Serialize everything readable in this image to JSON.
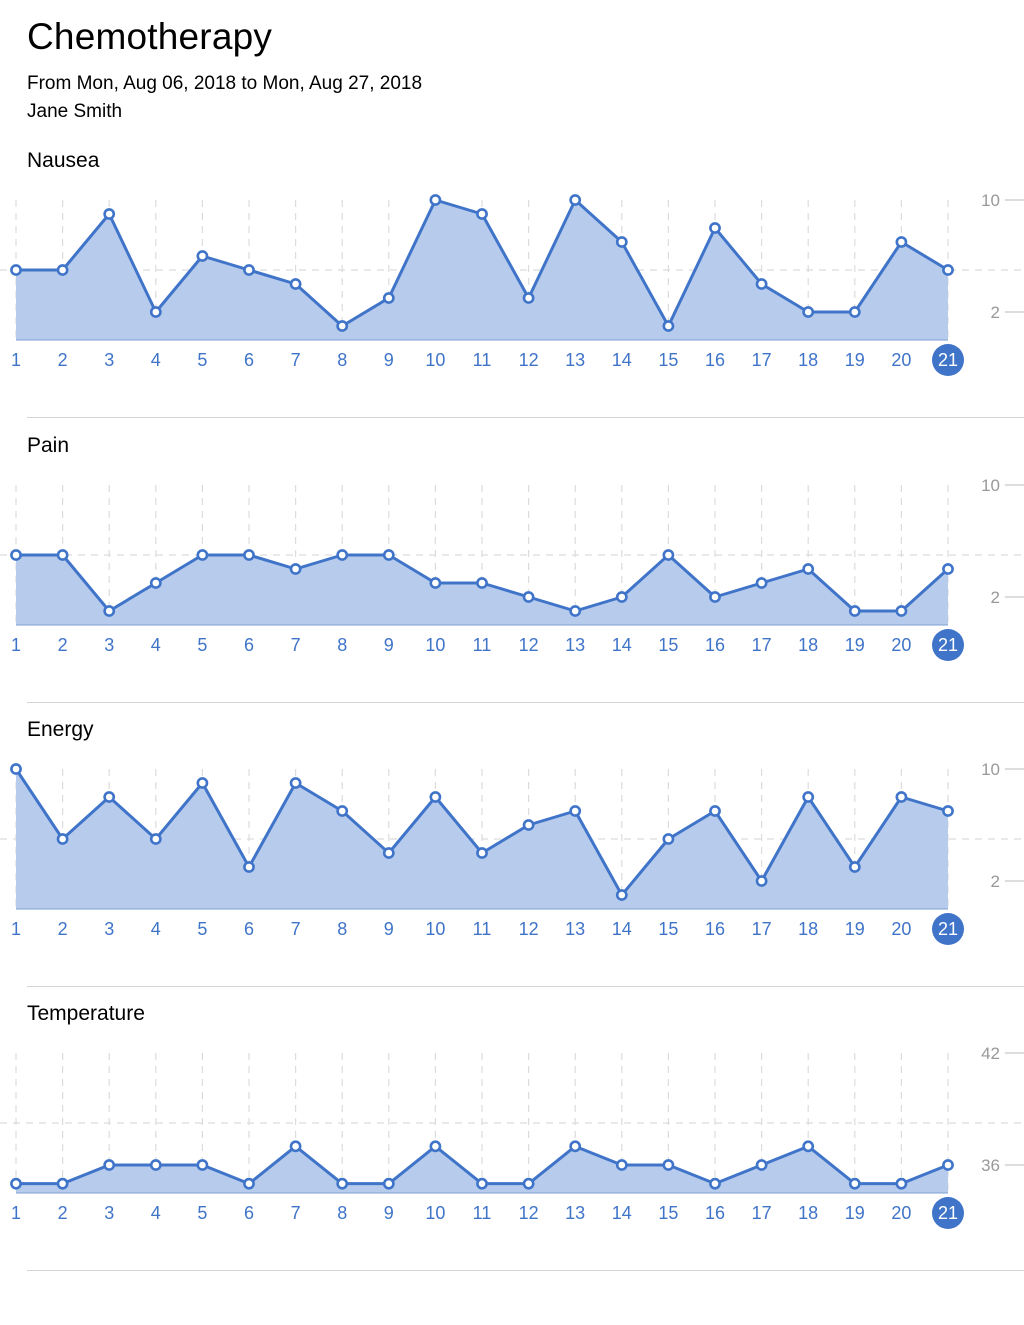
{
  "header": {
    "title": "Chemotherapy",
    "date_range": "From Mon, Aug 06, 2018 to Mon, Aug 27, 2018",
    "patient": "Jane Smith"
  },
  "colors": {
    "line": "#3f74c9",
    "fill": "#b7cbec",
    "highlight": "#3f74c9",
    "tick": "#3f74c9",
    "axis": "#999999"
  },
  "chart_data": [
    {
      "type": "area",
      "title": "Nausea",
      "x": [
        1,
        2,
        3,
        4,
        5,
        6,
        7,
        8,
        9,
        10,
        11,
        12,
        13,
        14,
        15,
        16,
        17,
        18,
        19,
        20,
        21
      ],
      "values": [
        5,
        5,
        9,
        2,
        6,
        5,
        4,
        1,
        3,
        10,
        9,
        3,
        10,
        7,
        1,
        8,
        4,
        2,
        2,
        7,
        5
      ],
      "ylim": [
        0,
        10
      ],
      "yticks": [
        "10",
        "2"
      ],
      "highlight_x": "21"
    },
    {
      "type": "area",
      "title": "Pain",
      "x": [
        1,
        2,
        3,
        4,
        5,
        6,
        7,
        8,
        9,
        10,
        11,
        12,
        13,
        14,
        15,
        16,
        17,
        18,
        19,
        20,
        21
      ],
      "values": [
        5,
        5,
        1,
        3,
        5,
        5,
        4,
        5,
        5,
        3,
        3,
        2,
        1,
        2,
        5,
        2,
        3,
        4,
        1,
        1,
        4
      ],
      "ylim": [
        0,
        10
      ],
      "yticks": [
        "10",
        "2"
      ],
      "highlight_x": "21"
    },
    {
      "type": "area",
      "title": "Energy",
      "x": [
        1,
        2,
        3,
        4,
        5,
        6,
        7,
        8,
        9,
        10,
        11,
        12,
        13,
        14,
        15,
        16,
        17,
        18,
        19,
        20,
        21
      ],
      "values": [
        10,
        5,
        8,
        5,
        9,
        3,
        9,
        7,
        4,
        8,
        4,
        6,
        7,
        1,
        5,
        7,
        2,
        8,
        3,
        8,
        7
      ],
      "ylim": [
        0,
        10
      ],
      "yticks": [
        "10",
        "2"
      ],
      "highlight_x": "21"
    },
    {
      "type": "area",
      "title": "Temperature",
      "x": [
        1,
        2,
        3,
        4,
        5,
        6,
        7,
        8,
        9,
        10,
        11,
        12,
        13,
        14,
        15,
        16,
        17,
        18,
        19,
        20,
        21
      ],
      "values": [
        35,
        35,
        36,
        36,
        36,
        35,
        37,
        35,
        35,
        37,
        35,
        35,
        37,
        36,
        36,
        35,
        36,
        37,
        35,
        35,
        36
      ],
      "ylim": [
        35,
        42
      ],
      "yticks": [
        "42",
        "36"
      ],
      "highlight_x": "21"
    }
  ]
}
